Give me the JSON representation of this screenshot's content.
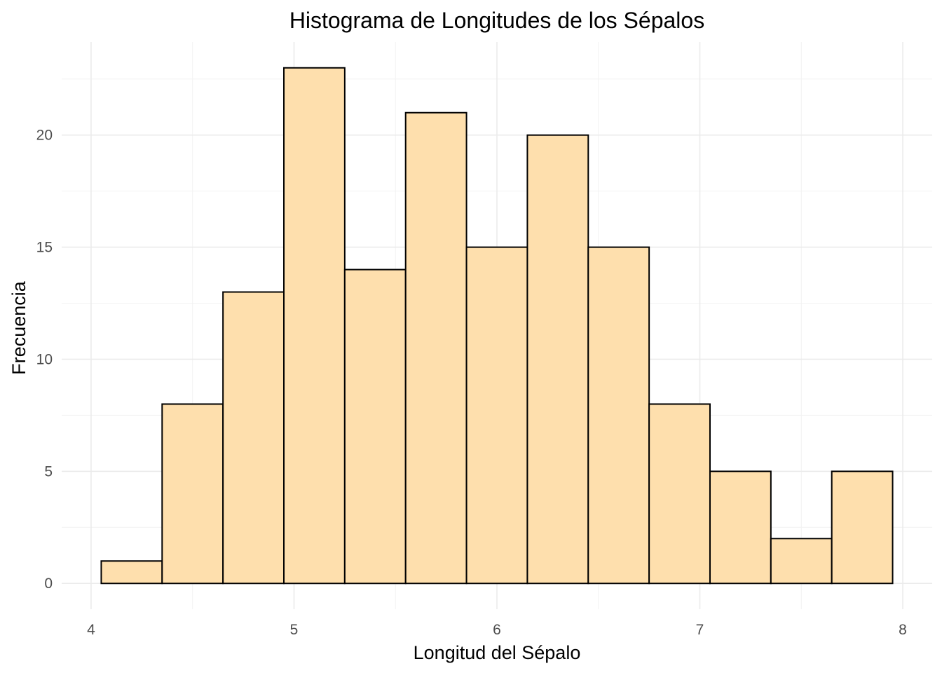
{
  "chart_data": {
    "type": "bar",
    "title": "Histograma de Longitudes de los Sépalos",
    "xlabel": "Longitud del Sépalo",
    "ylabel": "Frecuencia",
    "bin_width": 0.3,
    "bins": [
      {
        "start": 4.05,
        "end": 4.35,
        "count": 1
      },
      {
        "start": 4.35,
        "end": 4.65,
        "count": 8
      },
      {
        "start": 4.65,
        "end": 4.95,
        "count": 13
      },
      {
        "start": 4.95,
        "end": 5.25,
        "count": 23
      },
      {
        "start": 5.25,
        "end": 5.55,
        "count": 14
      },
      {
        "start": 5.55,
        "end": 5.85,
        "count": 21
      },
      {
        "start": 5.85,
        "end": 6.15,
        "count": 15
      },
      {
        "start": 6.15,
        "end": 6.45,
        "count": 20
      },
      {
        "start": 6.45,
        "end": 6.75,
        "count": 15
      },
      {
        "start": 6.75,
        "end": 7.05,
        "count": 8
      },
      {
        "start": 7.05,
        "end": 7.35,
        "count": 5
      },
      {
        "start": 7.35,
        "end": 7.65,
        "count": 2
      },
      {
        "start": 7.65,
        "end": 7.95,
        "count": 5
      }
    ],
    "xlim": [
      3.855,
      8.145
    ],
    "ylim": [
      -1.15,
      24.15
    ],
    "x_ticks": [
      4,
      5,
      6,
      7,
      8
    ],
    "x_tick_labels": [
      "4",
      "5",
      "6",
      "7",
      "8"
    ],
    "y_ticks": [
      0,
      5,
      10,
      15,
      20
    ],
    "y_tick_labels": [
      "0",
      "5",
      "10",
      "15",
      "20"
    ],
    "grid": true,
    "legend": "none",
    "colors": {
      "bar_fill": "#FEDFAD",
      "bar_stroke": "#000000",
      "grid": "#EBEBEB",
      "background": "#FFFFFF"
    }
  }
}
